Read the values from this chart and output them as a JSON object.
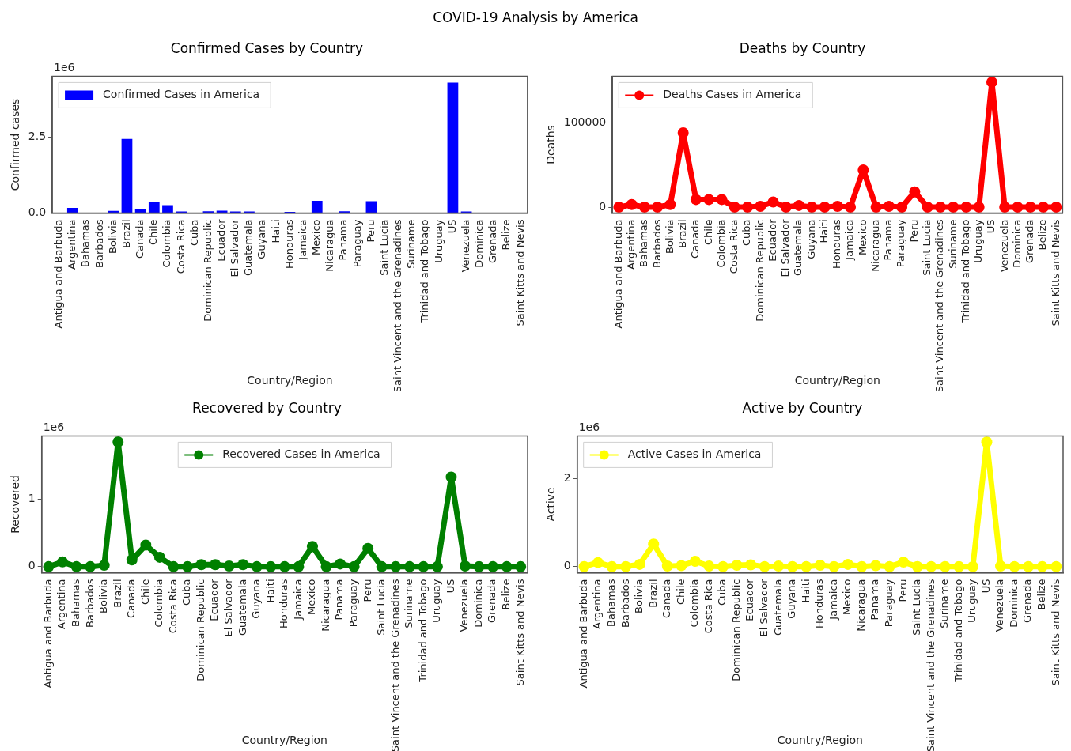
{
  "chart_data": [
    {
      "type": "bar",
      "title": "Confirmed Cases by Country",
      "subtitle": "COVID-19 Analysis by America",
      "xlabel": "Country/Region",
      "ylabel": "Confirmed cases",
      "annotations": [
        "1e6"
      ],
      "categories": [
        "Antigua and Barbuda",
        "Argentina",
        "Bahamas",
        "Barbados",
        "Bolivia",
        "Brazil",
        "Canada",
        "Chile",
        "Colombia",
        "Costa Rica",
        "Cuba",
        "Dominican Republic",
        "Ecuador",
        "El Salvador",
        "Guatemala",
        "Guyana",
        "Haiti",
        "Honduras",
        "Jamaica",
        "Mexico",
        "Nicaragua",
        "Panama",
        "Paraguay",
        "Peru",
        "Saint Lucia",
        "Saint Vincent and the Grenadines",
        "Suriname",
        "Trinidad and Tobago",
        "Uruguay",
        "US",
        "Venezuela",
        "Dominica",
        "Grenada",
        "Belize",
        "Saint Kitts and Nevis"
      ],
      "series": [
        {
          "name": "Confirmed Cases in America",
          "color": "#0000ff",
          "values": [
            0,
            0.17,
            0,
            0,
            0.07,
            2.44,
            0.12,
            0.35,
            0.26,
            0.05,
            0,
            0.06,
            0.08,
            0.05,
            0.05,
            0,
            0,
            0.04,
            0,
            0.4,
            0,
            0.06,
            0,
            0.39,
            0,
            0,
            0,
            0,
            0,
            4.29,
            0.05,
            0,
            0,
            0,
            0
          ]
        }
      ],
      "ylim": [
        0,
        4.5
      ],
      "yticks": [
        {
          "value": 0,
          "label": "0.0"
        },
        {
          "value": 2.5,
          "label": "2.5"
        }
      ],
      "grid": false,
      "legend": "top left"
    },
    {
      "type": "line",
      "title": "Deaths by Country",
      "xlabel": "Country/Region",
      "ylabel": "Deaths",
      "categories": [
        "Antigua and Barbuda",
        "Argentina",
        "Bahamas",
        "Barbados",
        "Bolivia",
        "Brazil",
        "Canada",
        "Chile",
        "Colombia",
        "Costa Rica",
        "Cuba",
        "Dominican Republic",
        "Ecuador",
        "El Salvador",
        "Guatemala",
        "Guyana",
        "Haiti",
        "Honduras",
        "Jamaica",
        "Mexico",
        "Nicaragua",
        "Panama",
        "Paraguay",
        "Peru",
        "Saint Lucia",
        "Saint Vincent and the Grenadines",
        "Suriname",
        "Trinidad and Tobago",
        "Uruguay",
        "US",
        "Venezuela",
        "Dominica",
        "Grenada",
        "Belize",
        "Saint Kitts and Nevis"
      ],
      "series": [
        {
          "name": "Deaths Cases in America",
          "color": "#ff0000",
          "values": [
            0,
            3000,
            0,
            0,
            3000,
            88000,
            9000,
            9000,
            9000,
            0,
            0,
            1000,
            6000,
            0,
            2000,
            0,
            0,
            1000,
            0,
            44000,
            0,
            1000,
            0,
            18000,
            0,
            0,
            0,
            0,
            0,
            148000,
            0,
            0,
            0,
            0,
            0
          ]
        }
      ],
      "ylim": [
        -7000,
        155000
      ],
      "yticks": [
        0,
        100000
      ],
      "grid": false,
      "legend": "top left",
      "marker": "circle"
    },
    {
      "type": "line",
      "title": "Recovered by Country",
      "xlabel": "Country/Region",
      "ylabel": "Recovered",
      "annotations": [
        "1e6"
      ],
      "categories": [
        "Antigua and Barbuda",
        "Argentina",
        "Bahamas",
        "Barbados",
        "Bolivia",
        "Brazil",
        "Canada",
        "Chile",
        "Colombia",
        "Costa Rica",
        "Cuba",
        "Dominican Republic",
        "Ecuador",
        "El Salvador",
        "Guatemala",
        "Guyana",
        "Haiti",
        "Honduras",
        "Jamaica",
        "Mexico",
        "Nicaragua",
        "Panama",
        "Paraguay",
        "Peru",
        "Saint Lucia",
        "Saint Vincent and the Grenadines",
        "Suriname",
        "Trinidad and Tobago",
        "Uruguay",
        "US",
        "Venezuela",
        "Dominica",
        "Grenada",
        "Belize",
        "Saint Kitts and Nevis"
      ],
      "series": [
        {
          "name": "Recovered Cases in America",
          "color": "#008000",
          "values": [
            0,
            0.07,
            0,
            0,
            0.02,
            1.85,
            0.1,
            0.32,
            0.14,
            0,
            0,
            0.03,
            0.03,
            0.01,
            0.03,
            0,
            0,
            0,
            0,
            0.3,
            0,
            0.04,
            0,
            0.27,
            0,
            0,
            0,
            0,
            0,
            1.33,
            0.01,
            0,
            0,
            0,
            0
          ]
        }
      ],
      "ylim": [
        -0.09,
        1.94
      ],
      "yticks": [
        0,
        1
      ],
      "grid": false,
      "legend": "top",
      "marker": "circle"
    },
    {
      "type": "line",
      "title": "Active by Country",
      "xlabel": "Country/Region",
      "ylabel": "Active",
      "annotations": [
        "1e6"
      ],
      "categories": [
        "Antigua and Barbuda",
        "Argentina",
        "Bahamas",
        "Barbados",
        "Bolivia",
        "Brazil",
        "Canada",
        "Chile",
        "Colombia",
        "Costa Rica",
        "Cuba",
        "Dominican Republic",
        "Ecuador",
        "El Salvador",
        "Guatemala",
        "Guyana",
        "Haiti",
        "Honduras",
        "Jamaica",
        "Mexico",
        "Nicaragua",
        "Panama",
        "Paraguay",
        "Peru",
        "Saint Lucia",
        "Saint Vincent and the Grenadines",
        "Suriname",
        "Trinidad and Tobago",
        "Uruguay",
        "US",
        "Venezuela",
        "Dominica",
        "Grenada",
        "Belize",
        "Saint Kitts and Nevis"
      ],
      "series": [
        {
          "name": "Active Cases in America",
          "color": "#ffff00",
          "values": [
            0,
            0.09,
            0,
            0,
            0.05,
            0.51,
            0.01,
            0.02,
            0.12,
            0.01,
            0,
            0.03,
            0.04,
            0,
            0.01,
            0,
            0,
            0.03,
            0,
            0.05,
            0,
            0.02,
            0,
            0.1,
            0,
            0,
            0,
            0,
            0,
            2.82,
            0.01,
            0,
            0,
            0,
            0
          ]
        }
      ],
      "ylim": [
        -0.14,
        2.96
      ],
      "yticks": [
        0,
        2
      ],
      "grid": false,
      "legend": "top left",
      "marker": "circle"
    }
  ]
}
